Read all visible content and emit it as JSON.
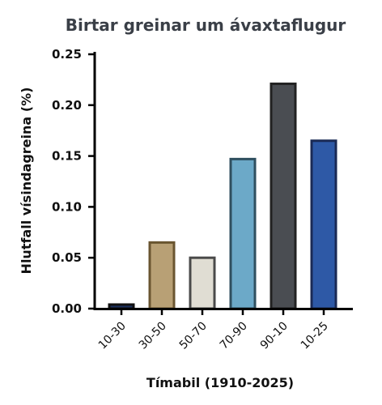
{
  "chart_data": {
    "type": "bar",
    "title": "Birtar greinar um ávaxtaflugur",
    "xlabel": "Tímabil (1910-2025)",
    "ylabel": "Hlutfall vísindagreina (%)",
    "categories": [
      "10-30",
      "30-50",
      "50-70",
      "70-90",
      "90-10",
      "10-25"
    ],
    "values": [
      0.004,
      0.065,
      0.05,
      0.147,
      0.221,
      0.165
    ],
    "ylim": [
      0,
      0.25
    ],
    "yticks": [
      "0.00",
      "0.05",
      "0.10",
      "0.15",
      "0.20",
      "0.25"
    ],
    "grid": false,
    "legend": "none",
    "colors": [
      "#1a2f5e",
      "#b8a075",
      "#e0ddd3",
      "#6ca9c8",
      "#4a4d52",
      "#2e59a6"
    ],
    "edge_colors": [
      "#111111",
      "#6a5530",
      "#4a4a4a",
      "#2f4f5f",
      "#222222",
      "#1a2a55"
    ]
  }
}
